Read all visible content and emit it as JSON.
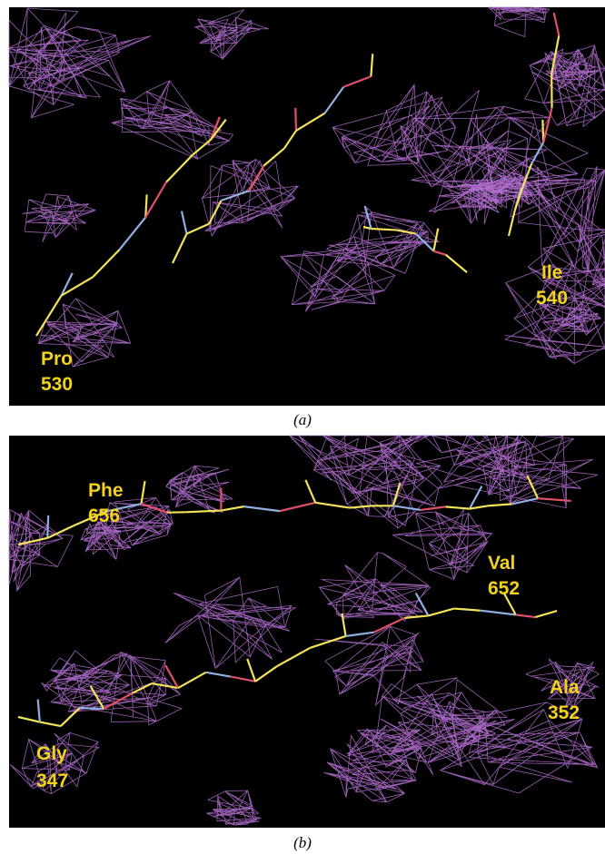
{
  "panels": [
    {
      "caption": "(a)",
      "labels": [
        {
          "name": "Pro",
          "number": "530"
        },
        {
          "name": "Ile",
          "number": "540"
        }
      ]
    },
    {
      "caption": "(b)",
      "labels": [
        {
          "name": "Phe",
          "number": "656"
        },
        {
          "name": "Val",
          "number": "652"
        },
        {
          "name": "Ala",
          "number": "352"
        },
        {
          "name": "Gly",
          "number": "347"
        }
      ]
    }
  ]
}
